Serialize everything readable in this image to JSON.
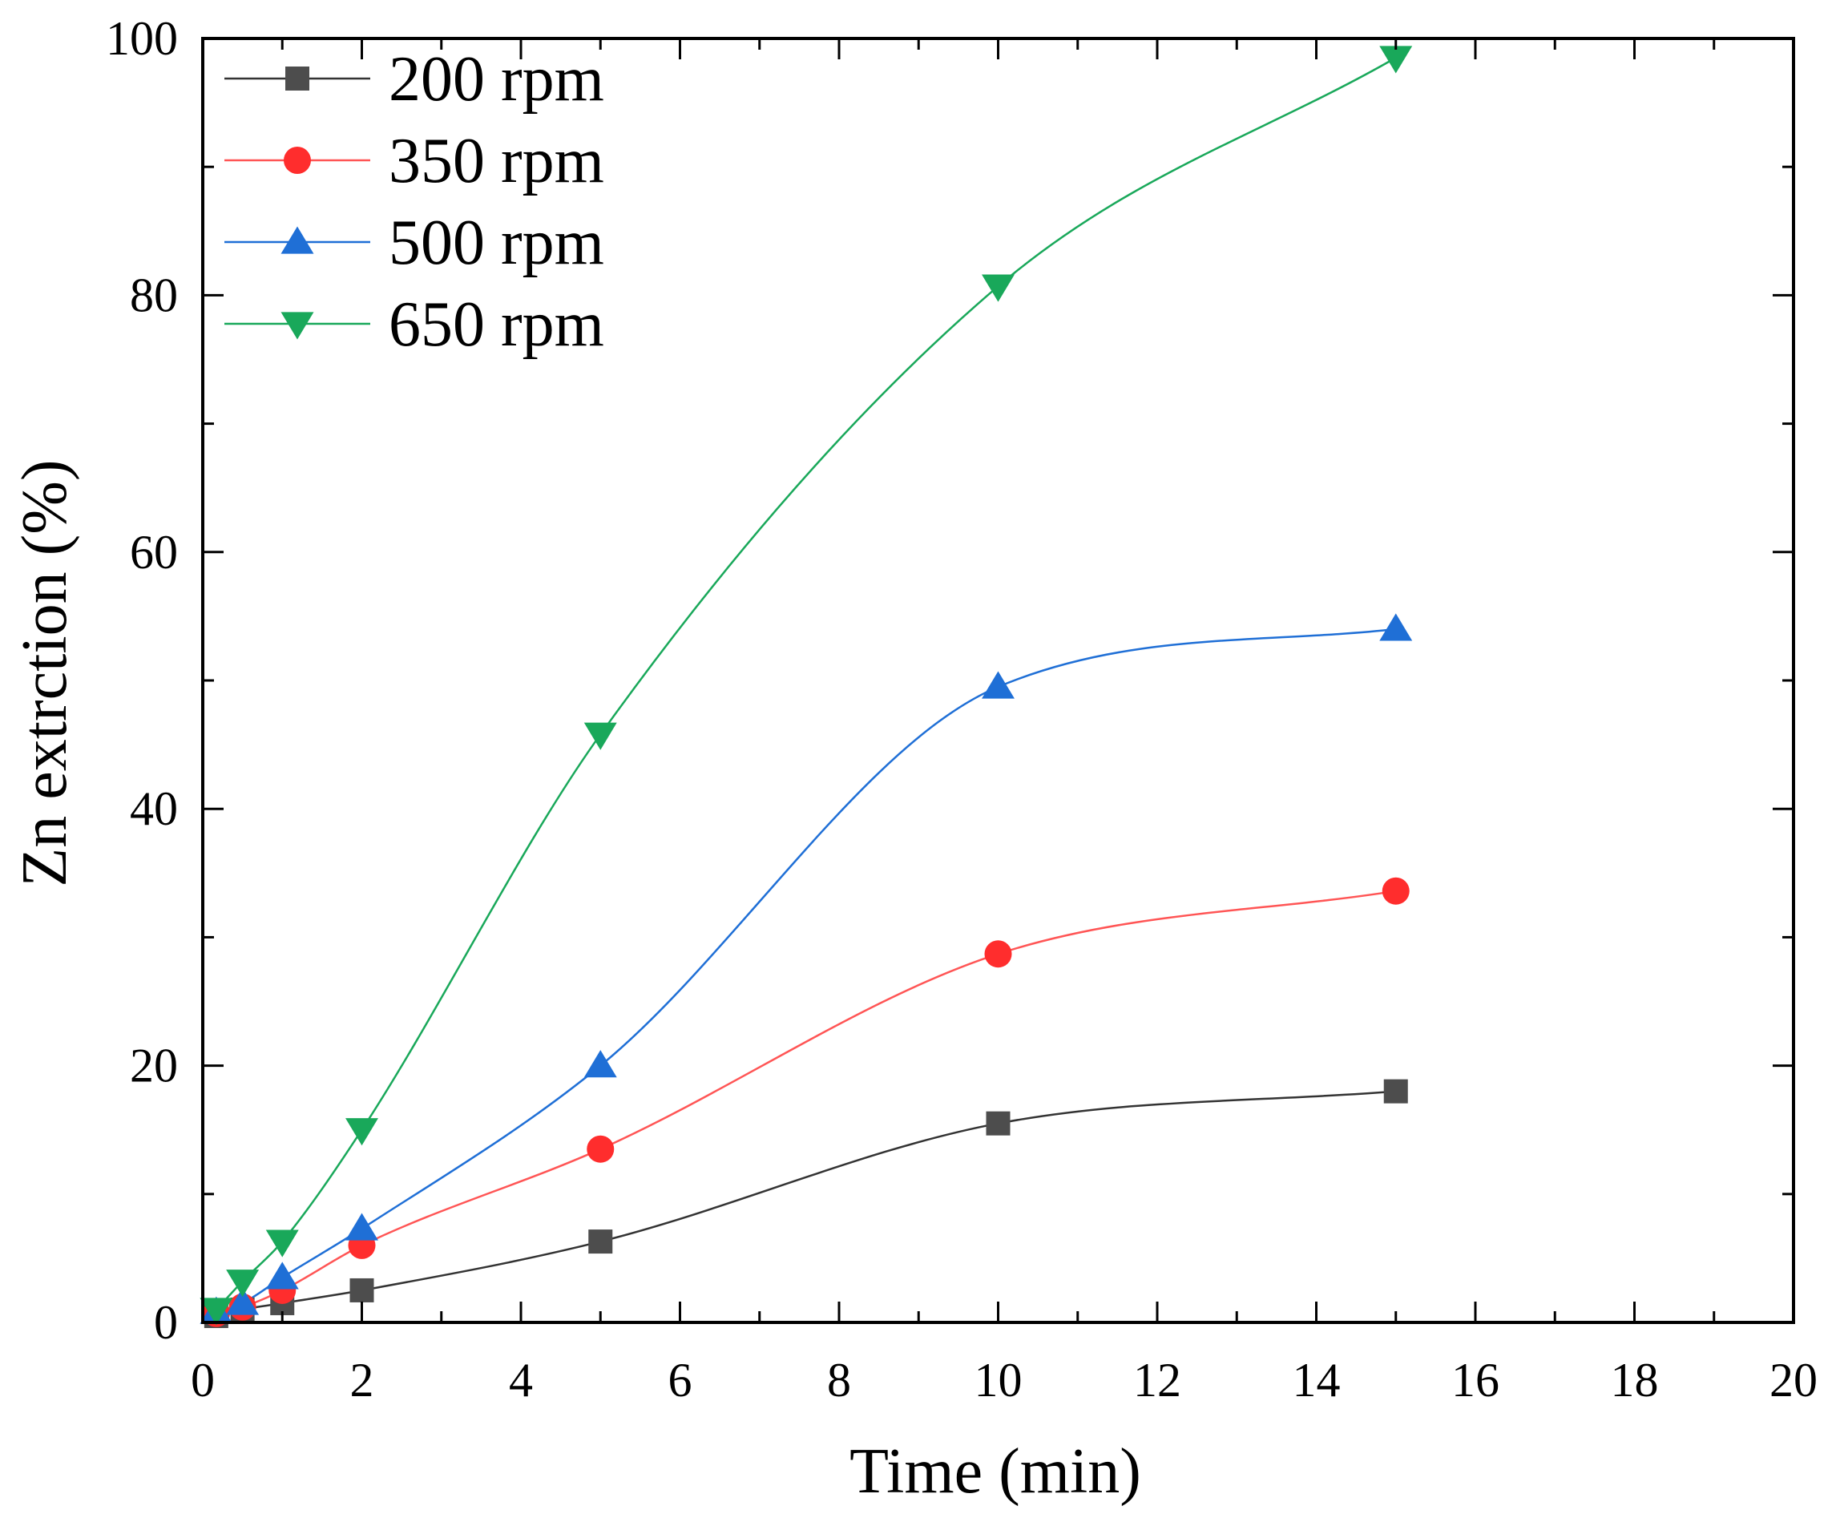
{
  "chart_data": {
    "type": "line",
    "title": "",
    "xlabel": "Time (min)",
    "ylabel": "Zn extrction (%)",
    "xlim": [
      0,
      20
    ],
    "ylim": [
      0,
      100
    ],
    "xticks": [
      0,
      2,
      4,
      6,
      8,
      10,
      12,
      14,
      16,
      18,
      20
    ],
    "yticks": [
      0,
      20,
      40,
      60,
      80,
      100
    ],
    "legend_position": "top-left",
    "grid": false,
    "x": [
      0.17,
      0.5,
      1,
      2,
      5,
      10,
      15
    ],
    "series": [
      {
        "name": "200 rpm",
        "marker": "square",
        "color": "#4d4d4d",
        "line_color": "#333333",
        "values": [
          0.5,
          1.0,
          1.5,
          2.5,
          6.3,
          15.5,
          18.0
        ]
      },
      {
        "name": "350 rpm",
        "marker": "circle",
        "color": "#ff2d2d",
        "line_color": "#ff5555",
        "values": [
          0.7,
          1.2,
          2.5,
          6.0,
          13.5,
          28.7,
          33.6
        ]
      },
      {
        "name": "500 rpm",
        "marker": "triangle-up",
        "color": "#1f6fd6",
        "line_color": "#1f6fd6",
        "values": [
          0.8,
          1.5,
          3.5,
          7.3,
          20.0,
          49.5,
          54.0
        ]
      },
      {
        "name": "650 rpm",
        "marker": "triangle-down",
        "color": "#19a85a",
        "line_color": "#19a85a",
        "values": [
          1.0,
          3.2,
          6.3,
          15.0,
          45.8,
          80.7,
          98.5
        ]
      }
    ]
  }
}
